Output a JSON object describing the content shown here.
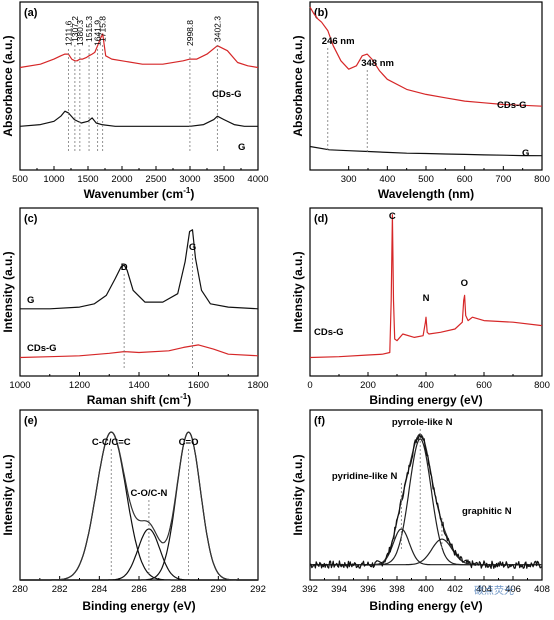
{
  "watermark": "碳点荧光",
  "colors": {
    "red": "#d62728",
    "black": "#111111",
    "fit": "#333333"
  },
  "chart_data": [
    {
      "id": "a",
      "panel_label": "(a)",
      "type": "line",
      "xlabel": "Wavenumber (cm",
      "xlabel_sup": "-1",
      "xlabel_end": ")",
      "ylabel": "Absorbance (a.u.)",
      "xlim": [
        500,
        4000
      ],
      "ylim": [
        0,
        10
      ],
      "xticks": [
        500,
        1000,
        1500,
        2000,
        2500,
        3000,
        3500,
        4000
      ],
      "series": [
        {
          "name": "CDs-G",
          "color": "#d62728",
          "x": [
            500,
            800,
            1000,
            1100,
            1160,
            1211.6,
            1260,
            1307.2,
            1340,
            1380.3,
            1420,
            1480,
            1515.3,
            1560,
            1600,
            1641.9,
            1680,
            1715.8,
            1760,
            1850,
            2000,
            2300,
            2600,
            2900,
            2998.8,
            3100,
            3250,
            3402.3,
            3550,
            3700,
            3850,
            4000
          ],
          "y": [
            6.1,
            6.3,
            6.6,
            6.8,
            6.9,
            6.9,
            6.6,
            6.5,
            6.5,
            6.6,
            6.6,
            6.7,
            6.8,
            6.9,
            7.0,
            7.4,
            7.8,
            8.1,
            6.8,
            6.6,
            6.5,
            6.3,
            6.3,
            6.5,
            6.6,
            6.6,
            6.9,
            7.4,
            7.1,
            6.4,
            6.2,
            6.1
          ]
        },
        {
          "name": "G",
          "color": "#111111",
          "x": [
            500,
            800,
            1000,
            1100,
            1160,
            1211.6,
            1300,
            1400,
            1500,
            1560,
            1620,
            1700,
            1900,
            2200,
            2600,
            3000,
            3200,
            3350,
            3402.3,
            3500,
            3650,
            3800,
            4000
          ],
          "y": [
            2.6,
            2.7,
            2.9,
            3.2,
            3.5,
            3.4,
            3.0,
            2.8,
            2.9,
            3.1,
            2.8,
            2.7,
            2.6,
            2.6,
            2.6,
            2.6,
            2.7,
            3.0,
            3.2,
            3.0,
            2.7,
            2.6,
            2.6
          ]
        }
      ],
      "annotations": [
        {
          "text": "1211.6",
          "x": 1211.6
        },
        {
          "text": "1307.2",
          "x": 1307.2
        },
        {
          "text": "1380.3",
          "x": 1380.3
        },
        {
          "text": "1515.3",
          "x": 1515.3
        },
        {
          "text": "1641.9",
          "x": 1641.9
        },
        {
          "text": "1715.8",
          "x": 1715.8
        },
        {
          "text": "2998.8",
          "x": 2998.8
        },
        {
          "text": "3402.3",
          "x": 3402.3
        }
      ]
    },
    {
      "id": "b",
      "panel_label": "(b)",
      "type": "line",
      "xlabel": "Wavelength (nm)",
      "ylabel": "Absorbance (a.u.)",
      "xlim": [
        200,
        800
      ],
      "ylim": [
        0,
        10
      ],
      "xticks": [
        300,
        400,
        500,
        600,
        700,
        800
      ],
      "series": [
        {
          "name": "CDs-G",
          "color": "#d62728",
          "x": [
            200,
            210,
            220,
            230,
            246,
            260,
            280,
            300,
            320,
            335,
            348,
            360,
            380,
            400,
            450,
            500,
            550,
            600,
            650,
            700,
            750,
            800
          ],
          "y": [
            9.7,
            9.3,
            9.0,
            8.8,
            8.3,
            7.4,
            6.5,
            6.0,
            6.2,
            6.8,
            6.9,
            6.6,
            5.9,
            5.4,
            4.8,
            4.5,
            4.3,
            4.1,
            4.0,
            3.9,
            3.85,
            3.8
          ]
        },
        {
          "name": "G",
          "color": "#111111",
          "x": [
            200,
            250,
            300,
            350,
            400,
            450,
            500,
            550,
            600,
            650,
            700,
            750,
            800
          ],
          "y": [
            1.4,
            1.2,
            1.15,
            1.1,
            1.05,
            1.0,
            0.98,
            0.95,
            0.93,
            0.9,
            0.88,
            0.86,
            0.85
          ]
        }
      ],
      "annotations": [
        {
          "text": "246 nm",
          "x": 246
        },
        {
          "text": "348 nm",
          "x": 348
        }
      ]
    },
    {
      "id": "c",
      "panel_label": "(c)",
      "type": "line",
      "xlabel": "Raman shift (cm",
      "xlabel_sup": "-1",
      "xlabel_end": ")",
      "ylabel": "Intensity (a.u.)",
      "xlim": [
        1000,
        1800
      ],
      "ylim": [
        0,
        10
      ],
      "xticks": [
        1000,
        1200,
        1400,
        1600,
        1800
      ],
      "series": [
        {
          "name": "G",
          "color": "#111111",
          "x": [
            1000,
            1100,
            1200,
            1250,
            1290,
            1320,
            1340,
            1350,
            1360,
            1380,
            1420,
            1480,
            1530,
            1555,
            1570,
            1580,
            1590,
            1610,
            1640,
            1700,
            1800
          ],
          "y": [
            4.0,
            4.0,
            4.1,
            4.3,
            4.8,
            5.8,
            6.5,
            6.6,
            6.3,
            5.1,
            4.4,
            4.4,
            4.9,
            6.8,
            8.6,
            8.7,
            7.0,
            5.1,
            4.3,
            4.1,
            4.0
          ]
        },
        {
          "name": "CDs-G",
          "color": "#d62728",
          "x": [
            1000,
            1100,
            1200,
            1300,
            1350,
            1400,
            1500,
            1550,
            1600,
            1650,
            1700,
            1800
          ],
          "y": [
            1.1,
            1.15,
            1.2,
            1.35,
            1.45,
            1.4,
            1.5,
            1.7,
            1.85,
            1.6,
            1.3,
            1.2
          ]
        }
      ],
      "annotations": [
        {
          "text": "D",
          "x": 1350
        },
        {
          "text": "G",
          "x": 1580
        }
      ]
    },
    {
      "id": "d",
      "panel_label": "(d)",
      "type": "line",
      "xlabel": "Binding energy (eV)",
      "ylabel": "Intensity (a.u.)",
      "xlim": [
        0,
        800
      ],
      "ylim": [
        0,
        10
      ],
      "xticks": [
        0,
        200,
        400,
        600,
        800
      ],
      "series": [
        {
          "name": "CDs-G",
          "color": "#d62728",
          "x": [
            0,
            100,
            200,
            250,
            275,
            280,
            284,
            288,
            292,
            300,
            320,
            360,
            390,
            398,
            400,
            404,
            410,
            450,
            500,
            525,
            530,
            533,
            537,
            545,
            560,
            600,
            700,
            800
          ],
          "y": [
            1.1,
            1.15,
            1.25,
            1.3,
            1.4,
            4.5,
            9.6,
            4.5,
            2.2,
            2.1,
            2.5,
            2.3,
            2.4,
            3.2,
            3.5,
            2.6,
            2.5,
            2.6,
            2.8,
            3.2,
            4.5,
            4.8,
            3.6,
            3.3,
            3.5,
            3.3,
            3.2,
            3.0
          ]
        }
      ],
      "annotations": [
        {
          "text": "C",
          "x": 284
        },
        {
          "text": "N",
          "x": 400
        },
        {
          "text": "O",
          "x": 532
        }
      ]
    },
    {
      "id": "e",
      "panel_label": "(e)",
      "type": "line",
      "xlabel": "Binding energy (eV)",
      "ylabel": "Intensity (a.u.)",
      "xlim": [
        280,
        292
      ],
      "ylim": [
        0,
        10
      ],
      "xticks": [
        280,
        282,
        284,
        286,
        288,
        290,
        292
      ],
      "series": [
        {
          "name": "C-C/C=C",
          "color": "#111111",
          "peak": {
            "center": 284.6,
            "height": 8.7,
            "sigma": 0.75
          }
        },
        {
          "name": "C-O/C-N",
          "color": "#111111",
          "peak": {
            "center": 286.5,
            "height": 3.0,
            "sigma": 0.55
          }
        },
        {
          "name": "C=O",
          "color": "#111111",
          "peak": {
            "center": 288.5,
            "height": 8.7,
            "sigma": 0.6
          }
        }
      ],
      "annotations": [
        {
          "text": "C-C/C=C",
          "x": 284.6
        },
        {
          "text": "C-O/C-N",
          "x": 286.5
        },
        {
          "text": "C=O",
          "x": 288.5
        }
      ]
    },
    {
      "id": "f",
      "panel_label": "(f)",
      "type": "line",
      "xlabel": "Binding energy (eV)",
      "ylabel": "Intensity (a.u.)",
      "xlim": [
        392,
        408
      ],
      "ylim": [
        0,
        10
      ],
      "xticks": [
        392,
        394,
        396,
        398,
        400,
        402,
        404,
        406,
        408
      ],
      "baseline": 0.9,
      "series": [
        {
          "name": "pyridine-like N",
          "color": "#222222",
          "peak": {
            "center": 398.3,
            "height": 2.1,
            "sigma": 0.55
          }
        },
        {
          "name": "pyrrole-like N",
          "color": "#222222",
          "peak": {
            "center": 399.6,
            "height": 7.4,
            "sigma": 0.75
          }
        },
        {
          "name": "graphitic N",
          "color": "#222222",
          "peak": {
            "center": 401.1,
            "height": 1.5,
            "sigma": 0.7
          }
        }
      ],
      "annotations": [
        {
          "text": "pyridine-like N",
          "x": 398.3
        },
        {
          "text": "pyrrole-like N",
          "x": 399.6
        },
        {
          "text": "graphitic N",
          "x": 401.1
        }
      ]
    }
  ]
}
